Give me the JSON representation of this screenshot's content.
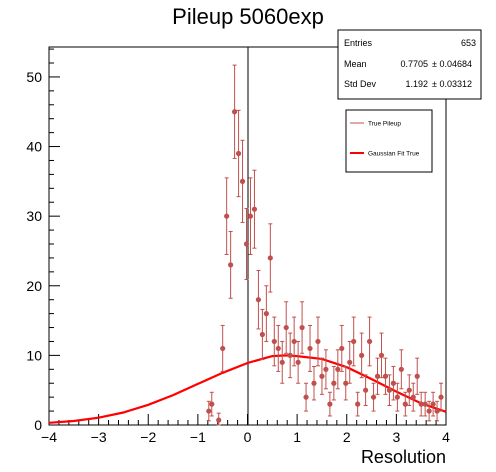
{
  "chart_data": {
    "type": "scatter",
    "title": "Pileup 5060exp",
    "xlabel": "Resolution",
    "ylabel": "",
    "xlim": [
      -4,
      4
    ],
    "ylim": [
      0,
      54.3
    ],
    "xticks": [
      -4,
      -3,
      -2,
      -1,
      0,
      1,
      2,
      3,
      4
    ],
    "yticks": [
      0,
      10,
      20,
      30,
      40,
      50
    ],
    "xtick_labels": [
      "−4",
      "−3",
      "−2",
      "−1",
      "0",
      "1",
      "2",
      "3",
      "4"
    ],
    "ytick_labels": [
      "0",
      "10",
      "20",
      "30",
      "40",
      "50"
    ],
    "grid": false,
    "stats": {
      "entries_label": "Entries",
      "entries_value": "653",
      "mean_label": "Mean",
      "mean_value": "0.7705",
      "mean_err": "± 0.04684",
      "std_label": "Std Dev",
      "std_value": "1.192",
      "std_err": "± 0.03312"
    },
    "legend": {
      "placement": "top-right",
      "entries": [
        {
          "label": "True Pileup",
          "color": "#c0504d"
        },
        {
          "label": "Gaussian Fit True",
          "color": "#ff0000"
        }
      ]
    },
    "colors": {
      "points": "#c0504d",
      "fit": "#ff0000"
    },
    "series": [
      {
        "name": "True Pileup",
        "kind": "points_with_errors",
        "x": [
          -0.78,
          -0.72,
          -0.58,
          -0.5,
          -0.42,
          -0.34,
          -0.26,
          -0.18,
          -0.1,
          -0.02,
          0.06,
          0.14,
          0.22,
          0.3,
          0.38,
          0.46,
          0.54,
          0.62,
          0.7,
          0.78,
          0.86,
          0.94,
          1.02,
          1.1,
          1.18,
          1.26,
          1.34,
          1.42,
          1.5,
          1.58,
          1.66,
          1.74,
          1.82,
          1.9,
          1.98,
          2.06,
          2.14,
          2.22,
          2.3,
          2.38,
          2.46,
          2.54,
          2.62,
          2.7,
          2.78,
          2.86,
          2.94,
          3.02,
          3.1,
          3.18,
          3.26,
          3.34,
          3.42,
          3.5,
          3.58,
          3.66,
          3.74,
          3.82,
          3.9
        ],
        "y": [
          2,
          3,
          0.7,
          11,
          30,
          23,
          45,
          39,
          35,
          26,
          30,
          31,
          18,
          13,
          16,
          24,
          12,
          11,
          9,
          14,
          10,
          12,
          9,
          14,
          4,
          11,
          6,
          12,
          7,
          8,
          3,
          6,
          8,
          11,
          6,
          9,
          12,
          3,
          10,
          5,
          12,
          4,
          7,
          10,
          7,
          5,
          6,
          4,
          8,
          3,
          5,
          4,
          7,
          3,
          3,
          2,
          3,
          2,
          4
        ],
        "err": [
          1.4,
          1.7,
          1,
          3.3,
          5.5,
          4.8,
          6.7,
          6.2,
          5.9,
          5.1,
          5.5,
          5.6,
          4.2,
          3.6,
          4,
          4.9,
          3.5,
          3.3,
          3,
          3.7,
          3.2,
          3.5,
          3,
          3.7,
          2,
          3.3,
          2.4,
          3.5,
          2.6,
          2.8,
          1.7,
          2.4,
          2.8,
          3.3,
          2.4,
          3,
          3.5,
          1.7,
          3.2,
          2.2,
          3.5,
          2,
          2.6,
          3.2,
          2.6,
          2.2,
          2.4,
          2,
          2.8,
          1.7,
          2.2,
          2,
          2.6,
          1.7,
          1.7,
          1.4,
          1.7,
          1.4,
          2
        ]
      },
      {
        "name": "Gaussian Fit True",
        "kind": "curve",
        "x": [
          -4,
          -3.5,
          -3,
          -2.5,
          -2,
          -1.5,
          -1,
          -0.5,
          0,
          0.5,
          0.77,
          1,
          1.5,
          2,
          2.5,
          3,
          3.5,
          4
        ],
        "y": [
          0.32,
          0.58,
          1.05,
          1.8,
          2.9,
          4.3,
          5.9,
          7.5,
          8.9,
          9.9,
          10.0,
          9.9,
          9.5,
          8.3,
          6.6,
          4.8,
          3.1,
          1.9
        ]
      }
    ]
  }
}
